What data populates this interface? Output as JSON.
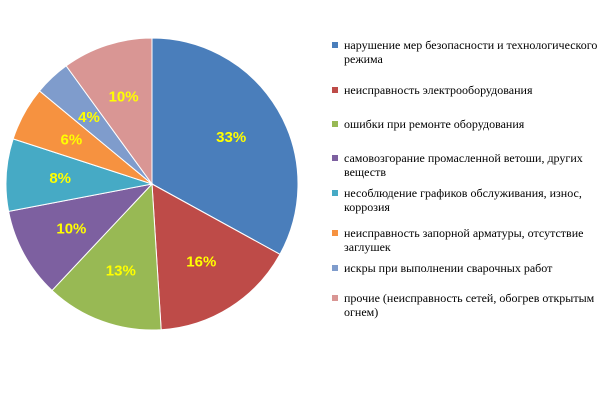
{
  "chart_data": {
    "type": "pie",
    "title": "",
    "slices": [
      {
        "label": "нарушение мер безопасности и технологического режима",
        "value": 33,
        "display": "33%",
        "color": "#4a7ebb"
      },
      {
        "label": "неисправность электрооборудования",
        "value": 16,
        "display": "16%",
        "color": "#be4b48"
      },
      {
        "label": "ошибки при ремонте оборудования",
        "value": 13,
        "display": "13%",
        "color": "#98b954"
      },
      {
        "label": "самовозгорание промасленной ветоши, других веществ",
        "value": 10,
        "display": "10%",
        "color": "#7d60a0"
      },
      {
        "label": "несоблюдение графиков обслуживания, износ, коррозия",
        "value": 8,
        "display": "8%",
        "color": "#46aac5"
      },
      {
        "label": "неисправность запорной арматуры, отсутствие заглушек",
        "value": 6,
        "display": "6%",
        "color": "#f69240"
      },
      {
        "label": "искры при выполнении сварочных работ",
        "value": 4,
        "display": "4%",
        "color": "#7f9ccc"
      },
      {
        "label": "прочие (неисправность сетей, обогрев открытым огнем)",
        "value": 10,
        "display": "10%",
        "color": "#d99694"
      }
    ],
    "start_angle_deg": 0,
    "direction": "clockwise",
    "legend_position": "right"
  }
}
